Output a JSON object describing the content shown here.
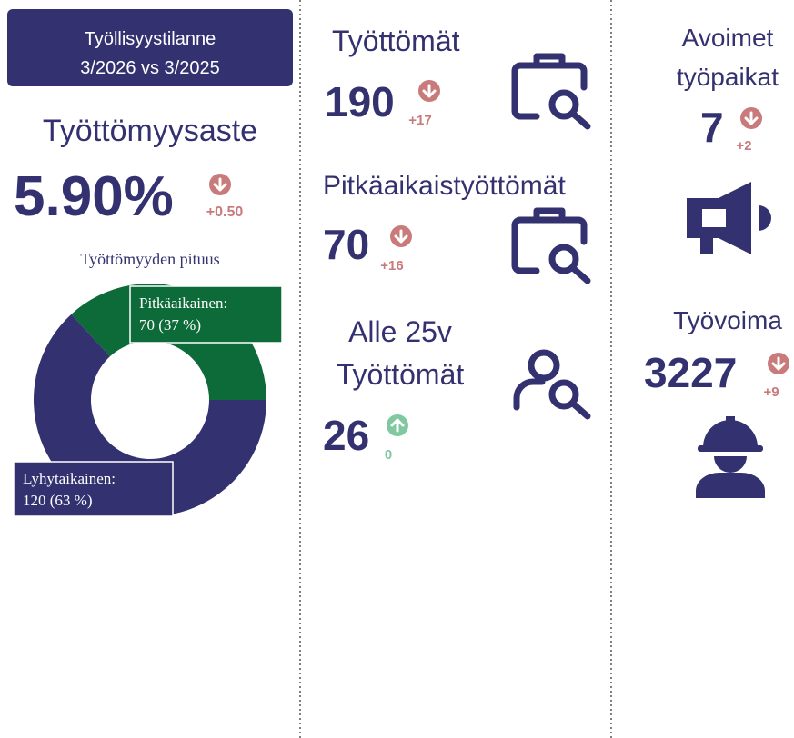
{
  "header": {
    "title": "Työllisyystilanne",
    "period": "3/2026 vs 3/2025"
  },
  "rate": {
    "label": "Työttömyysaste",
    "value": "5.90%",
    "change": "+0.50",
    "direction": "up"
  },
  "chart_data": {
    "type": "donut",
    "title": "Työttömyyden pituus",
    "categories": [
      "Pitkäaikainen:",
      "Lyhytaikainen:"
    ],
    "values": [
      70,
      120
    ],
    "value_labels": [
      "70 (37 %)",
      "120 (63 %)"
    ],
    "colors": [
      "#0d6b3a",
      "#33316f"
    ]
  },
  "kpis": [
    {
      "label": "Työttömät",
      "value": 190,
      "change": "+17",
      "direction": "up"
    },
    {
      "label": "Pitkäaikaistyöttömät",
      "value": 70,
      "change": "+16",
      "direction": "up"
    },
    {
      "label": [
        "Alle 25v",
        "Työttömät"
      ],
      "value": 26,
      "change": "0",
      "direction": "down"
    },
    {
      "label": [
        "Avoimet",
        "työpaikat"
      ],
      "value": 7,
      "change": "+2",
      "direction": "up"
    },
    {
      "label": "Työvoima",
      "value": 3227,
      "change": "+9",
      "direction": "up"
    }
  ],
  "colors": {
    "worse": "#c97a7a",
    "better": "#7fc8a0"
  }
}
